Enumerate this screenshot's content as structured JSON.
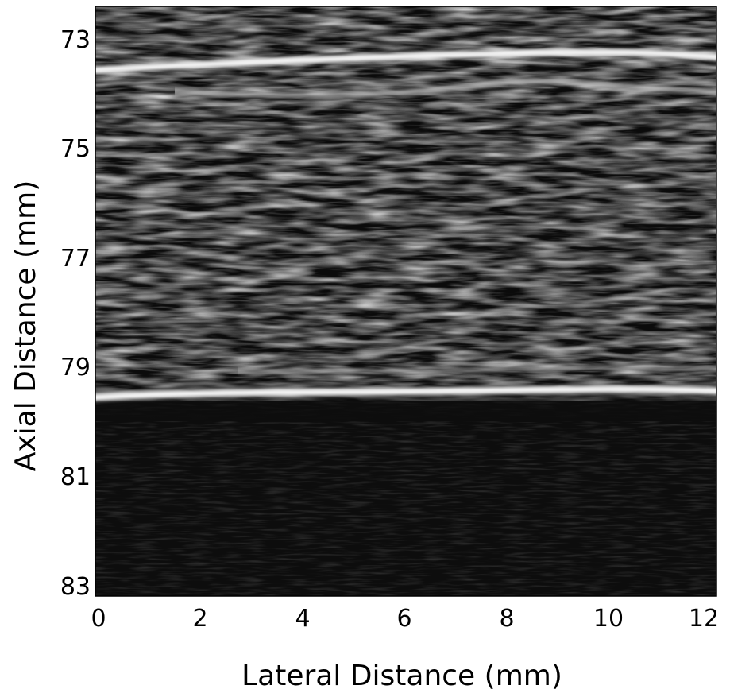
{
  "figure": {
    "type": "b-mode-ultrasound-image",
    "colormap": "grayscale",
    "xlabel": "Lateral Distance (mm)",
    "ylabel": "Axial Distance (mm)",
    "x_ticks": [
      "0",
      "2",
      "4",
      "6",
      "8",
      "10",
      "12"
    ],
    "y_ticks": [
      "73",
      "75",
      "77",
      "79",
      "81",
      "83"
    ],
    "x_range_mm": [
      0,
      12
    ],
    "y_range_mm": [
      72.4,
      83.2
    ],
    "reflector_lines_axial_mm": [
      73.5,
      79.5
    ]
  }
}
